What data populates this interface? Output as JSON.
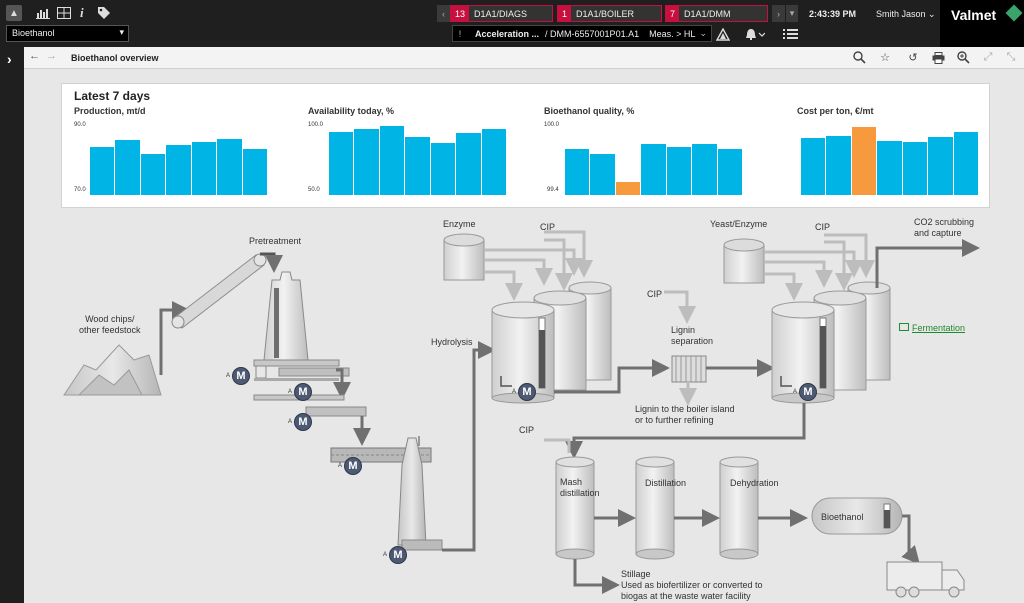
{
  "topbar": {
    "selector": "Bioethanol",
    "alarms": [
      {
        "count": "13",
        "label": "D1A1/DIAGS"
      },
      {
        "count": "1",
        "label": "D1A1/BOILER"
      },
      {
        "count": "7",
        "label": "D1A1/DMM"
      }
    ],
    "breadcrumb": {
      "part1": "Acceleration ...",
      "part2": "/ DMM-6557001P01.A1",
      "part3": "Meas. > HL"
    },
    "time": "2:43:39 PM",
    "user": "Smith Jason",
    "brand": "Valmet"
  },
  "toolbar": {
    "page_title": "Bioethanol overview"
  },
  "kpi": {
    "heading": "Latest 7 days",
    "colors": {
      "normal": "#00b4e6",
      "highlight": "#f79a3e"
    }
  },
  "chart_data": [
    {
      "type": "bar",
      "title": "Production, mt/d",
      "ylim": [
        70.0,
        90.0
      ],
      "ytick_labels": [
        "90.0",
        "70.0"
      ],
      "values": [
        84,
        86,
        82,
        84.4,
        85.5,
        86.3,
        83.4
      ],
      "highlight": []
    },
    {
      "type": "bar",
      "title": "Availability today, %",
      "ylim": [
        50.0,
        100.0
      ],
      "ytick_labels": [
        "100.0",
        "50.0"
      ],
      "values": [
        96,
        98,
        100,
        92,
        88,
        95,
        98
      ],
      "highlight": []
    },
    {
      "type": "bar",
      "title": "Bioethanol quality, %",
      "ylim": [
        99.4,
        100.0
      ],
      "ytick_labels": [
        "100.0",
        "99.4"
      ],
      "values": [
        99.8,
        99.76,
        99.51,
        99.84,
        99.82,
        99.84,
        99.8
      ],
      "highlight": [
        2
      ]
    },
    {
      "type": "bar",
      "title": "Cost per ton, €/mt",
      "ylim": [
        0,
        100
      ],
      "ytick_labels": [],
      "values": [
        83,
        86,
        98,
        79,
        77,
        84,
        92
      ],
      "highlight": [
        2
      ]
    }
  ],
  "process": {
    "pretreatment": "Pretreatment",
    "wood_chips": [
      "Wood chips/",
      "other feedstock"
    ],
    "enzyme": "Enzyme",
    "cip": "CIP",
    "hydrolysis": "Hydrolysis",
    "lignin_separation": [
      "Lignin",
      "separation"
    ],
    "lignin_out": [
      "Lignin to the boiler island",
      "or to further refining"
    ],
    "yeast": "Yeast/Enzyme",
    "co2": [
      "CO2 scrubbing",
      "and capture"
    ],
    "fermentation_link": "Fermentation",
    "mash": [
      "Mash",
      "distillation"
    ],
    "distillation": "Distillation",
    "dehydration": "Dehydration",
    "bioethanol": "Bioethanol",
    "stillage": [
      "Stillage",
      "Used as biofertilizer or converted to",
      "biogas at the waste water facility"
    ],
    "motor_letter": "M",
    "motor_mode": "A"
  }
}
